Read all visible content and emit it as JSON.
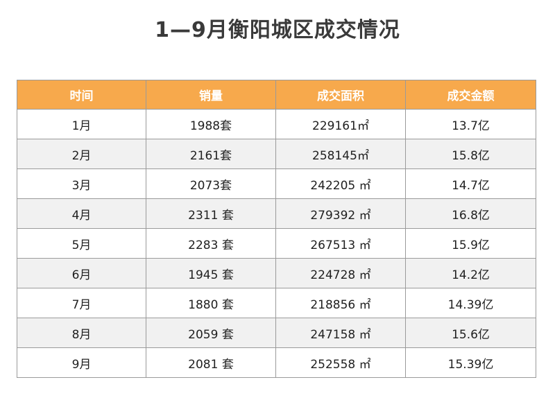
{
  "title": "1—9月衡阳城区成交情况",
  "colors": {
    "header_bg": "#f7a94c",
    "row_alt_bg": "#f1f1f1",
    "border": "#9a9a9a"
  },
  "chart_data": {
    "type": "table",
    "title": "1—9月衡阳城区成交情况",
    "columns": [
      "时间",
      "销量",
      "成交面积",
      "成交金额"
    ],
    "rows": [
      [
        "1月",
        "1988套",
        "229161㎡",
        "13.7亿"
      ],
      [
        "2月",
        "2161套",
        "258145㎡",
        "15.8亿"
      ],
      [
        "3月",
        "2073套",
        "242205 ㎡",
        "14.7亿"
      ],
      [
        "4月",
        "2311 套",
        "279392 ㎡",
        "16.8亿"
      ],
      [
        "5月",
        "2283 套",
        "267513 ㎡",
        "15.9亿"
      ],
      [
        "6月",
        "1945 套",
        "224728 ㎡",
        "14.2亿"
      ],
      [
        "7月",
        "1880 套",
        "218856 ㎡",
        "14.39亿"
      ],
      [
        "8月",
        "2059 套",
        "247158 ㎡",
        "15.6亿"
      ],
      [
        "9月",
        "2081 套",
        "252558 ㎡",
        "15.39亿"
      ]
    ]
  }
}
